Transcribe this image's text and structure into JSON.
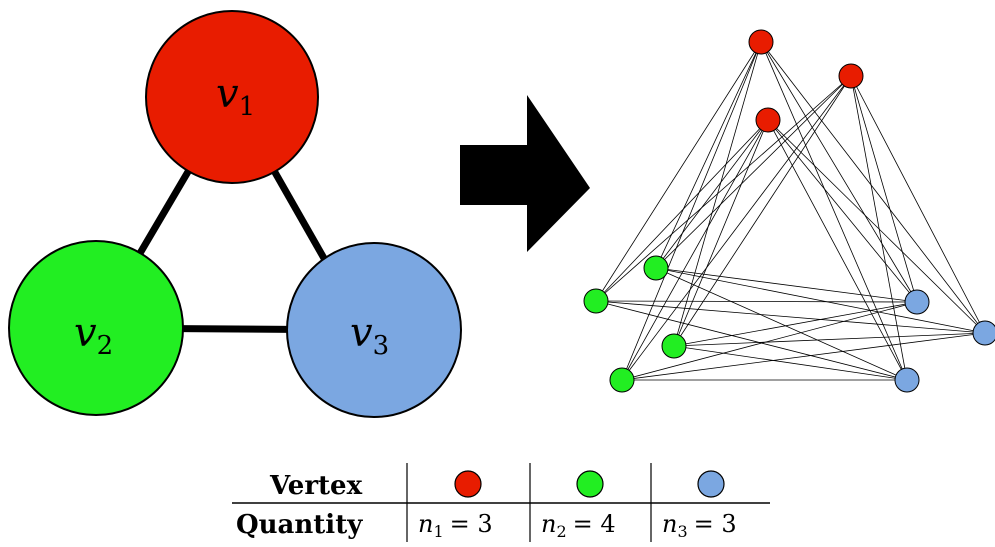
{
  "colors": {
    "red": "#e81c00",
    "green": "#22ee22",
    "blue": "#7ba7e1",
    "edge": "#000000"
  },
  "quotient_graph": {
    "nodes": [
      {
        "id": "v1",
        "letter": "v",
        "sub": "1",
        "color": "red"
      },
      {
        "id": "v2",
        "letter": "v",
        "sub": "2",
        "color": "green"
      },
      {
        "id": "v3",
        "letter": "v",
        "sub": "3",
        "color": "blue"
      }
    ],
    "edges": [
      [
        "v1",
        "v2"
      ],
      [
        "v1",
        "v3"
      ],
      [
        "v2",
        "v3"
      ]
    ]
  },
  "expanded_graph": {
    "groups": [
      {
        "color": "red",
        "count": 3
      },
      {
        "color": "green",
        "count": 4
      },
      {
        "color": "blue",
        "count": 3
      }
    ]
  },
  "table": {
    "row1_header": "Vertex",
    "row2_header": "Quantity",
    "columns": [
      {
        "color": "red",
        "var": "n",
        "sub": "1",
        "value": "= 3"
      },
      {
        "color": "green",
        "var": "n",
        "sub": "2",
        "value": "= 4"
      },
      {
        "color": "blue",
        "var": "n",
        "sub": "3",
        "value": "= 3"
      }
    ]
  }
}
